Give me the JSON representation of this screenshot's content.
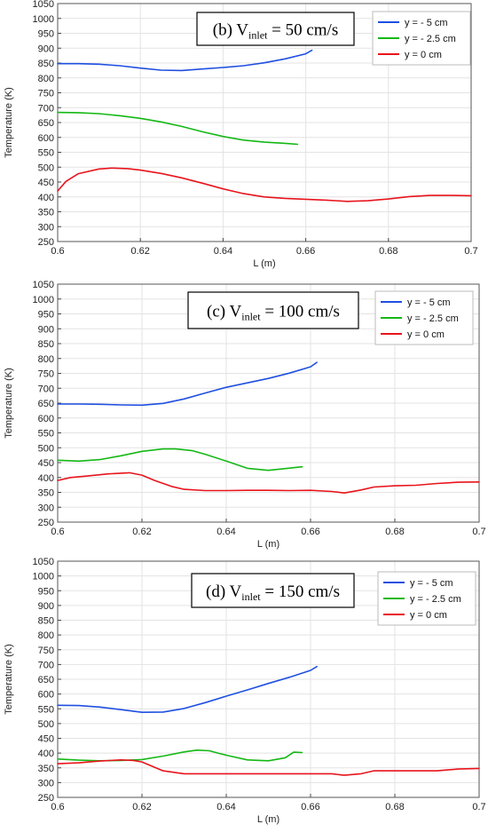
{
  "chart_data": [
    {
      "type": "line",
      "annotation": {
        "prefix": "(b) V",
        "subscript": "inlet",
        "suffix": " = 50 cm/s"
      },
      "xlabel": "L (m)",
      "ylabel": "Temperature (K)",
      "xlim": [
        0.6,
        0.7
      ],
      "ylim": [
        250,
        1050
      ],
      "xticks": [
        0.6,
        0.62,
        0.64,
        0.66,
        0.68,
        0.7
      ],
      "xtick_labels": [
        "0.6",
        "0.62",
        "0.64",
        "0.66",
        "0.68",
        "0.7"
      ],
      "yticks": [
        250,
        300,
        350,
        400,
        450,
        500,
        550,
        600,
        650,
        700,
        750,
        800,
        850,
        900,
        950,
        1000,
        1050
      ],
      "ytick_labels": [
        "250",
        "300",
        "350",
        "400",
        "450",
        "500",
        "550",
        "600",
        "650",
        "700",
        "750",
        "800",
        "850",
        "900",
        "950",
        "1000",
        "1050"
      ],
      "grid": true,
      "legend_position": "top-right",
      "series": [
        {
          "name": "y = - 5 cm",
          "color": "#1f4fe0",
          "x": [
            0.6,
            0.605,
            0.61,
            0.615,
            0.62,
            0.625,
            0.63,
            0.635,
            0.64,
            0.645,
            0.65,
            0.655,
            0.66,
            0.6615
          ],
          "y": [
            848,
            848,
            846,
            841,
            833,
            826,
            825,
            830,
            835,
            841,
            851,
            864,
            881,
            893
          ]
        },
        {
          "name": "y = - 2.5 cm",
          "color": "#14b814",
          "x": [
            0.6,
            0.605,
            0.61,
            0.615,
            0.62,
            0.625,
            0.63,
            0.635,
            0.64,
            0.645,
            0.65,
            0.655,
            0.658
          ],
          "y": [
            684,
            683,
            680,
            673,
            664,
            652,
            637,
            619,
            603,
            591,
            584,
            580,
            577
          ]
        },
        {
          "name": "y = 0 cm",
          "color": "#e8141c",
          "x": [
            0.6,
            0.602,
            0.605,
            0.61,
            0.613,
            0.617,
            0.62,
            0.625,
            0.63,
            0.635,
            0.64,
            0.645,
            0.65,
            0.655,
            0.66,
            0.665,
            0.67,
            0.675,
            0.68,
            0.685,
            0.69,
            0.695,
            0.7
          ],
          "y": [
            420,
            452,
            478,
            494,
            497,
            495,
            490,
            479,
            464,
            446,
            427,
            411,
            400,
            395,
            392,
            389,
            385,
            387,
            393,
            401,
            405,
            405,
            404
          ]
        }
      ]
    },
    {
      "type": "line",
      "annotation": {
        "prefix": "(c) V",
        "subscript": "inlet",
        "suffix": " = 100 cm/s"
      },
      "xlabel": "L (m)",
      "ylabel": "Temperature (K)",
      "xlim": [
        0.6,
        0.7
      ],
      "ylim": [
        250,
        1050
      ],
      "xticks": [
        0.6,
        0.62,
        0.64,
        0.66,
        0.68,
        0.7
      ],
      "xtick_labels": [
        "0.6",
        "0.62",
        "0.64",
        "0.66",
        "0.68",
        "0.7"
      ],
      "yticks": [
        250,
        300,
        350,
        400,
        450,
        500,
        550,
        600,
        650,
        700,
        750,
        800,
        850,
        900,
        950,
        1000,
        1050
      ],
      "ytick_labels": [
        "250",
        "300",
        "350",
        "400",
        "450",
        "500",
        "550",
        "600",
        "650",
        "700",
        "750",
        "800",
        "850",
        "900",
        "950",
        "1000",
        "1050"
      ],
      "grid": true,
      "legend_position": "top-right",
      "series": [
        {
          "name": "y = - 5 cm",
          "color": "#1f4fe0",
          "x": [
            0.6,
            0.605,
            0.61,
            0.615,
            0.62,
            0.625,
            0.63,
            0.635,
            0.64,
            0.645,
            0.65,
            0.655,
            0.66,
            0.6615
          ],
          "y": [
            647,
            647,
            646,
            644,
            643,
            649,
            664,
            684,
            703,
            718,
            733,
            751,
            772,
            787
          ]
        },
        {
          "name": "y = - 2.5 cm",
          "color": "#14b814",
          "x": [
            0.6,
            0.605,
            0.61,
            0.615,
            0.62,
            0.625,
            0.628,
            0.632,
            0.635,
            0.64,
            0.645,
            0.65,
            0.654,
            0.658
          ],
          "y": [
            458,
            455,
            460,
            473,
            488,
            496,
            496,
            490,
            478,
            455,
            431,
            424,
            430,
            436
          ]
        },
        {
          "name": "y = 0 cm",
          "color": "#e8141c",
          "x": [
            0.6,
            0.603,
            0.607,
            0.612,
            0.617,
            0.62,
            0.623,
            0.627,
            0.63,
            0.635,
            0.64,
            0.645,
            0.65,
            0.655,
            0.66,
            0.665,
            0.668,
            0.672,
            0.675,
            0.68,
            0.685,
            0.69,
            0.695,
            0.7
          ],
          "y": [
            390,
            400,
            405,
            412,
            416,
            408,
            390,
            370,
            360,
            356,
            356,
            357,
            357,
            356,
            357,
            353,
            348,
            358,
            368,
            372,
            374,
            380,
            384,
            385
          ]
        }
      ]
    },
    {
      "type": "line",
      "annotation": {
        "prefix": "(d) V",
        "subscript": "inlet",
        "suffix": " = 150 cm/s"
      },
      "xlabel": "L (m)",
      "ylabel": "Temperature (K)",
      "xlim": [
        0.6,
        0.7
      ],
      "ylim": [
        250,
        1050
      ],
      "xticks": [
        0.6,
        0.62,
        0.64,
        0.66,
        0.68,
        0.7
      ],
      "xtick_labels": [
        "0.6",
        "0.62",
        "0.64",
        "0.66",
        "0.68",
        "0.7"
      ],
      "yticks": [
        250,
        300,
        350,
        400,
        450,
        500,
        550,
        600,
        650,
        700,
        750,
        800,
        850,
        900,
        950,
        1000,
        1050
      ],
      "ytick_labels": [
        "250",
        "300",
        "350",
        "400",
        "450",
        "500",
        "550",
        "600",
        "650",
        "700",
        "750",
        "800",
        "850",
        "900",
        "950",
        "1000",
        "1050"
      ],
      "grid": true,
      "legend_position": "top-right",
      "series": [
        {
          "name": "y = - 5 cm",
          "color": "#1f4fe0",
          "x": [
            0.6,
            0.605,
            0.61,
            0.615,
            0.62,
            0.625,
            0.63,
            0.635,
            0.64,
            0.645,
            0.65,
            0.655,
            0.66,
            0.6615
          ],
          "y": [
            562,
            561,
            556,
            547,
            538,
            539,
            551,
            571,
            593,
            614,
            636,
            657,
            680,
            693
          ]
        },
        {
          "name": "y = - 2.5 cm",
          "color": "#14b814",
          "x": [
            0.6,
            0.605,
            0.61,
            0.615,
            0.62,
            0.625,
            0.63,
            0.633,
            0.636,
            0.638,
            0.64,
            0.645,
            0.65,
            0.654,
            0.656,
            0.658
          ],
          "y": [
            380,
            376,
            374,
            375,
            378,
            390,
            404,
            410,
            408,
            400,
            393,
            377,
            374,
            384,
            403,
            402
          ]
        },
        {
          "name": "y = 0 cm",
          "color": "#e8141c",
          "x": [
            0.6,
            0.605,
            0.61,
            0.615,
            0.618,
            0.62,
            0.622,
            0.625,
            0.63,
            0.635,
            0.64,
            0.645,
            0.65,
            0.655,
            0.66,
            0.665,
            0.668,
            0.672,
            0.675,
            0.68,
            0.685,
            0.69,
            0.695,
            0.7
          ],
          "y": [
            364,
            367,
            373,
            377,
            375,
            370,
            358,
            340,
            330,
            330,
            330,
            330,
            330,
            330,
            330,
            330,
            325,
            330,
            340,
            340,
            340,
            340,
            346,
            348
          ]
        }
      ]
    }
  ]
}
